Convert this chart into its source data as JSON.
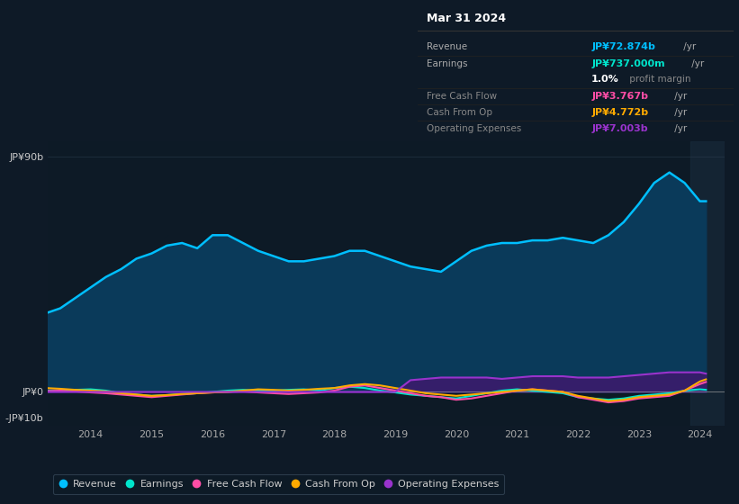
{
  "fig_bg_color": "#0e1a27",
  "plot_bg_color": "#0d1a26",
  "years": [
    2013.25,
    2013.5,
    2013.75,
    2014.0,
    2014.25,
    2014.5,
    2014.75,
    2015.0,
    2015.25,
    2015.5,
    2015.75,
    2016.0,
    2016.25,
    2016.5,
    2016.75,
    2017.0,
    2017.25,
    2017.5,
    2017.75,
    2018.0,
    2018.25,
    2018.5,
    2018.75,
    2019.0,
    2019.25,
    2019.5,
    2019.75,
    2020.0,
    2020.25,
    2020.5,
    2020.75,
    2021.0,
    2021.25,
    2021.5,
    2021.75,
    2022.0,
    2022.25,
    2022.5,
    2022.75,
    2023.0,
    2023.25,
    2023.5,
    2023.75,
    2024.0,
    2024.1
  ],
  "revenue": [
    30,
    32,
    36,
    40,
    44,
    47,
    51,
    53,
    56,
    57,
    55,
    60,
    60,
    57,
    54,
    52,
    50,
    50,
    51,
    52,
    54,
    54,
    52,
    50,
    48,
    47,
    46,
    50,
    54,
    56,
    57,
    57,
    58,
    58,
    59,
    58,
    57,
    60,
    65,
    72,
    80,
    84,
    80,
    73,
    73
  ],
  "earnings": [
    0.5,
    0.3,
    0.8,
    1.0,
    0.5,
    -0.5,
    -1.0,
    -1.5,
    -1.2,
    -0.8,
    -0.5,
    0.0,
    0.5,
    0.8,
    0.5,
    0.5,
    0.8,
    1.0,
    0.5,
    1.5,
    2.0,
    1.5,
    0.5,
    -0.2,
    -1.0,
    -1.5,
    -2.0,
    -2.5,
    -1.5,
    -0.5,
    0.5,
    1.0,
    0.5,
    0.0,
    -0.5,
    -2.0,
    -2.5,
    -3.0,
    -2.5,
    -1.5,
    -1.0,
    -0.5,
    0.5,
    1.0,
    0.8
  ],
  "free_cash_flow": [
    0.3,
    0.5,
    0.2,
    -0.2,
    -0.5,
    -1.0,
    -1.5,
    -2.0,
    -1.5,
    -1.0,
    -0.5,
    -0.2,
    0.0,
    0.2,
    -0.2,
    -0.5,
    -0.8,
    -0.5,
    -0.2,
    0.5,
    2.0,
    2.5,
    1.5,
    0.5,
    -0.5,
    -1.5,
    -2.0,
    -3.0,
    -2.5,
    -1.5,
    -0.5,
    0.5,
    1.0,
    0.5,
    0.0,
    -2.0,
    -3.0,
    -4.0,
    -3.5,
    -2.5,
    -2.0,
    -1.5,
    0.5,
    3.0,
    3.8
  ],
  "cash_from_op": [
    1.5,
    1.2,
    0.8,
    0.5,
    0.2,
    -0.5,
    -1.0,
    -1.5,
    -1.2,
    -0.8,
    -0.5,
    -0.2,
    0.0,
    0.5,
    1.0,
    0.8,
    0.5,
    0.8,
    1.2,
    1.5,
    2.5,
    3.0,
    2.5,
    1.5,
    0.5,
    -0.5,
    -1.0,
    -1.5,
    -1.0,
    -0.5,
    0.0,
    0.5,
    1.0,
    0.5,
    0.0,
    -1.5,
    -2.5,
    -3.5,
    -3.0,
    -2.0,
    -1.5,
    -1.0,
    0.5,
    4.0,
    4.8
  ],
  "operating_expenses": [
    0,
    0,
    0,
    0,
    0,
    0,
    0,
    0,
    0,
    0,
    0,
    0,
    0,
    0,
    0,
    0,
    0,
    0,
    0,
    0,
    0,
    0,
    0,
    0,
    4.5,
    5.0,
    5.5,
    5.5,
    5.5,
    5.5,
    5.0,
    5.5,
    6.0,
    6.0,
    6.0,
    5.5,
    5.5,
    5.5,
    6.0,
    6.5,
    7.0,
    7.5,
    7.5,
    7.5,
    7.0
  ],
  "revenue_color": "#00bfff",
  "revenue_fill_color": "#0a3a5a",
  "earnings_color": "#00e5cc",
  "free_cash_flow_color": "#ff4da6",
  "cash_from_op_color": "#ffaa00",
  "operating_expenses_color": "#9933cc",
  "operating_expenses_fill_color": "#3d1a6e",
  "ylim_min": -13,
  "ylim_max": 96,
  "ytick_vals": [
    -10,
    0,
    90
  ],
  "ytick_labels": [
    "-JP¥10b",
    "JP¥0",
    "JP¥90b"
  ],
  "xtick_years": [
    2014,
    2015,
    2016,
    2017,
    2018,
    2019,
    2020,
    2021,
    2022,
    2023,
    2024
  ],
  "xlim_min": 2013.3,
  "xlim_max": 2024.4,
  "shade_start": 2023.85,
  "info_box": {
    "title": "Mar 31 2024",
    "rows": [
      {
        "label": "Revenue",
        "value": "JP¥72.874b",
        "value_color": "#00bfff",
        "suffix": " /yr"
      },
      {
        "label": "Earnings",
        "value": "JP¥737.000m",
        "value_color": "#00e5cc",
        "suffix": " /yr"
      },
      {
        "label": "",
        "value": "1.0%",
        "value_color": "#ffffff",
        "suffix": " profit margin"
      },
      {
        "label": "Free Cash Flow",
        "value": "JP¥3.767b",
        "value_color": "#ff4da6",
        "suffix": " /yr"
      },
      {
        "label": "Cash From Op",
        "value": "JP¥4.772b",
        "value_color": "#ffaa00",
        "suffix": " /yr"
      },
      {
        "label": "Operating Expenses",
        "value": "JP¥7.003b",
        "value_color": "#9933cc",
        "suffix": " /yr"
      }
    ]
  },
  "legend_items": [
    {
      "label": "Revenue",
      "color": "#00bfff"
    },
    {
      "label": "Earnings",
      "color": "#00e5cc"
    },
    {
      "label": "Free Cash Flow",
      "color": "#ff4da6"
    },
    {
      "label": "Cash From Op",
      "color": "#ffaa00"
    },
    {
      "label": "Operating Expenses",
      "color": "#9933cc"
    }
  ]
}
